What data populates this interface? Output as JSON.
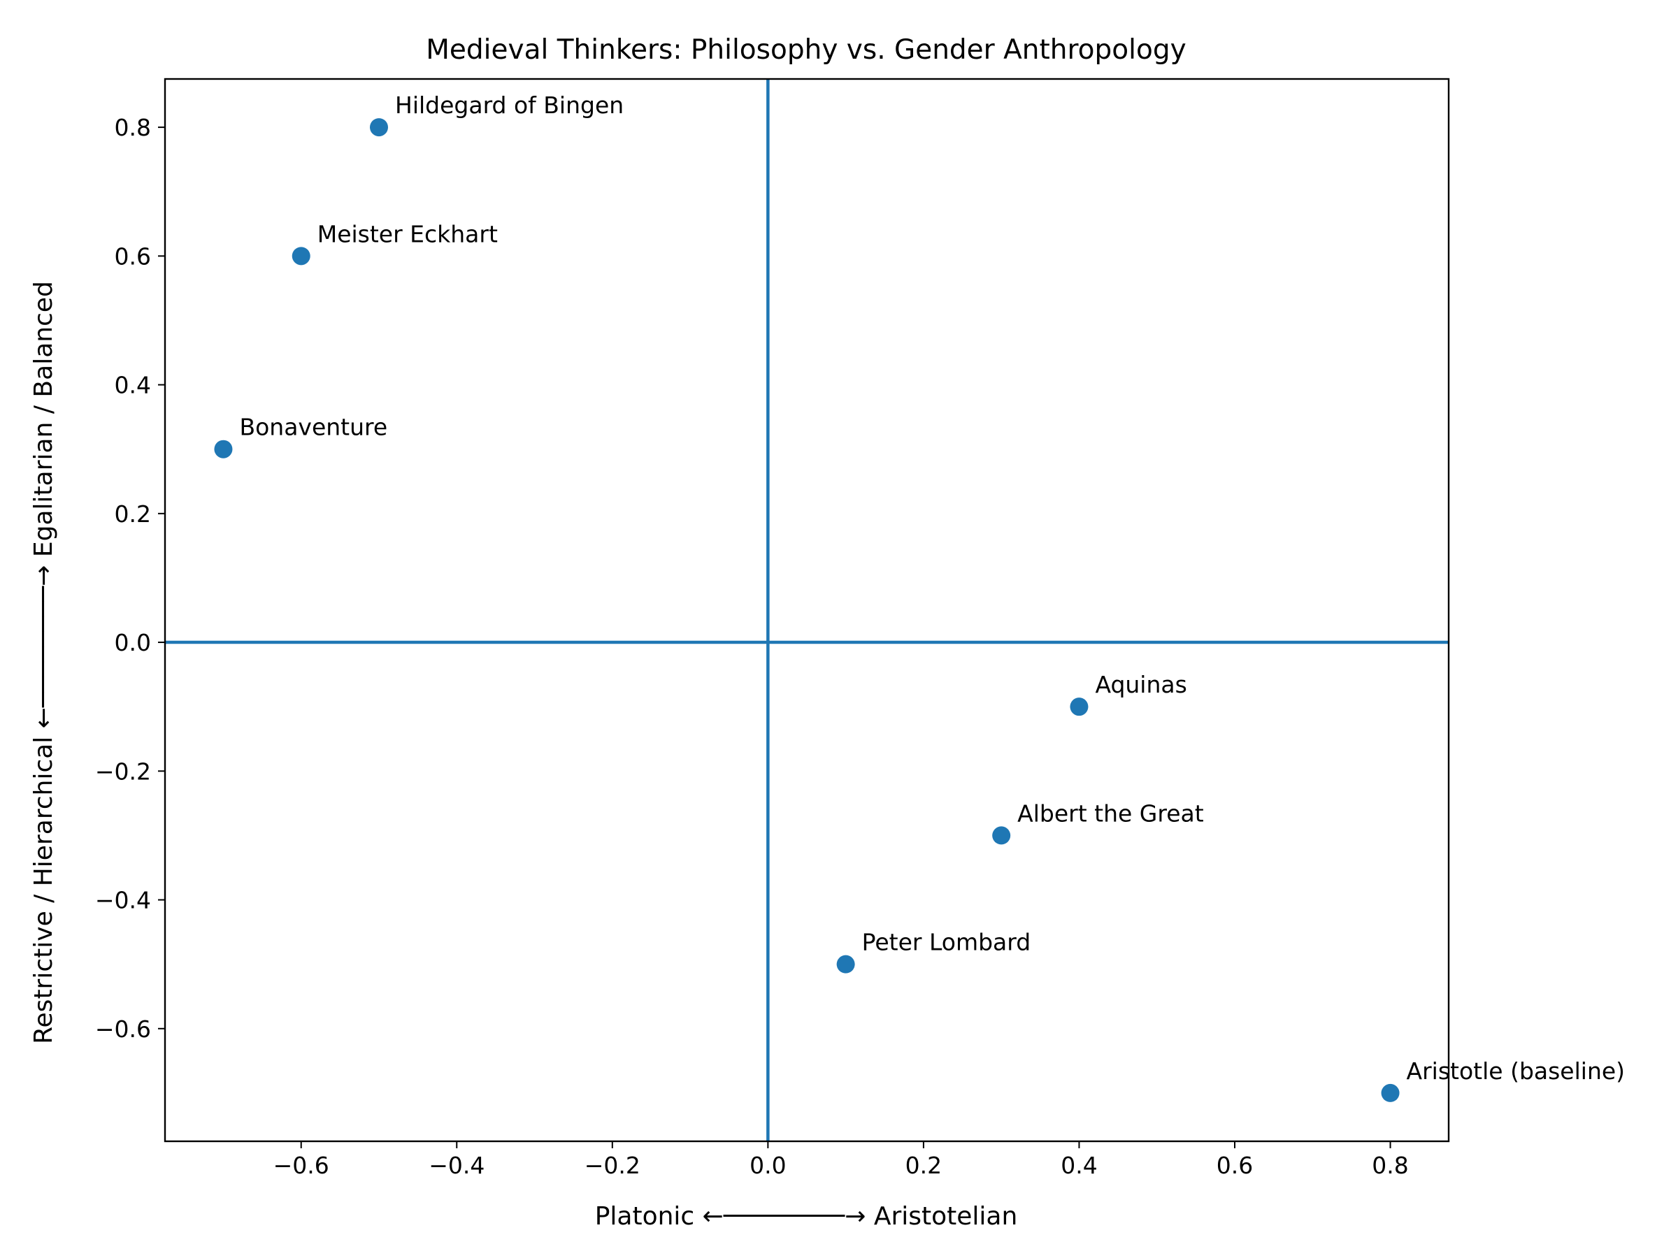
{
  "chart_data": {
    "type": "scatter",
    "title": "Medieval Thinkers: Philosophy vs. Gender Anthropology",
    "xlabel": "Platonic ←────────→ Aristotelian",
    "ylabel": "Restrictive / Hierarchical ←────────→ Egalitarian / Balanced",
    "xlim": [
      -0.775,
      0.875
    ],
    "ylim": [
      -0.775,
      0.875
    ],
    "x_ticks": [
      -0.6,
      -0.4,
      -0.2,
      0.0,
      0.2,
      0.4,
      0.6,
      0.8
    ],
    "y_ticks": [
      -0.6,
      -0.4,
      -0.2,
      0.0,
      0.2,
      0.4,
      0.6,
      0.8
    ],
    "x_tick_labels": [
      "−0.6",
      "−0.4",
      "−0.2",
      "0.0",
      "0.2",
      "0.4",
      "0.6",
      "0.8"
    ],
    "y_tick_labels": [
      "−0.6",
      "−0.4",
      "−0.2",
      "0.0",
      "0.2",
      "0.4",
      "0.6",
      "0.8"
    ],
    "grid": false,
    "reference_lines": {
      "x": 0,
      "y": 0
    },
    "color": "#1f77b4",
    "points": [
      {
        "label": "Hildegard of Bingen",
        "x": -0.5,
        "y": 0.8
      },
      {
        "label": "Meister Eckhart",
        "x": -0.6,
        "y": 0.6
      },
      {
        "label": "Bonaventure",
        "x": -0.7,
        "y": 0.3
      },
      {
        "label": "Aquinas",
        "x": 0.4,
        "y": -0.1
      },
      {
        "label": "Albert the Great",
        "x": 0.3,
        "y": -0.3
      },
      {
        "label": "Peter Lombard",
        "x": 0.1,
        "y": -0.5
      },
      {
        "label": "Aristotle (baseline)",
        "x": 0.8,
        "y": -0.7
      }
    ]
  }
}
